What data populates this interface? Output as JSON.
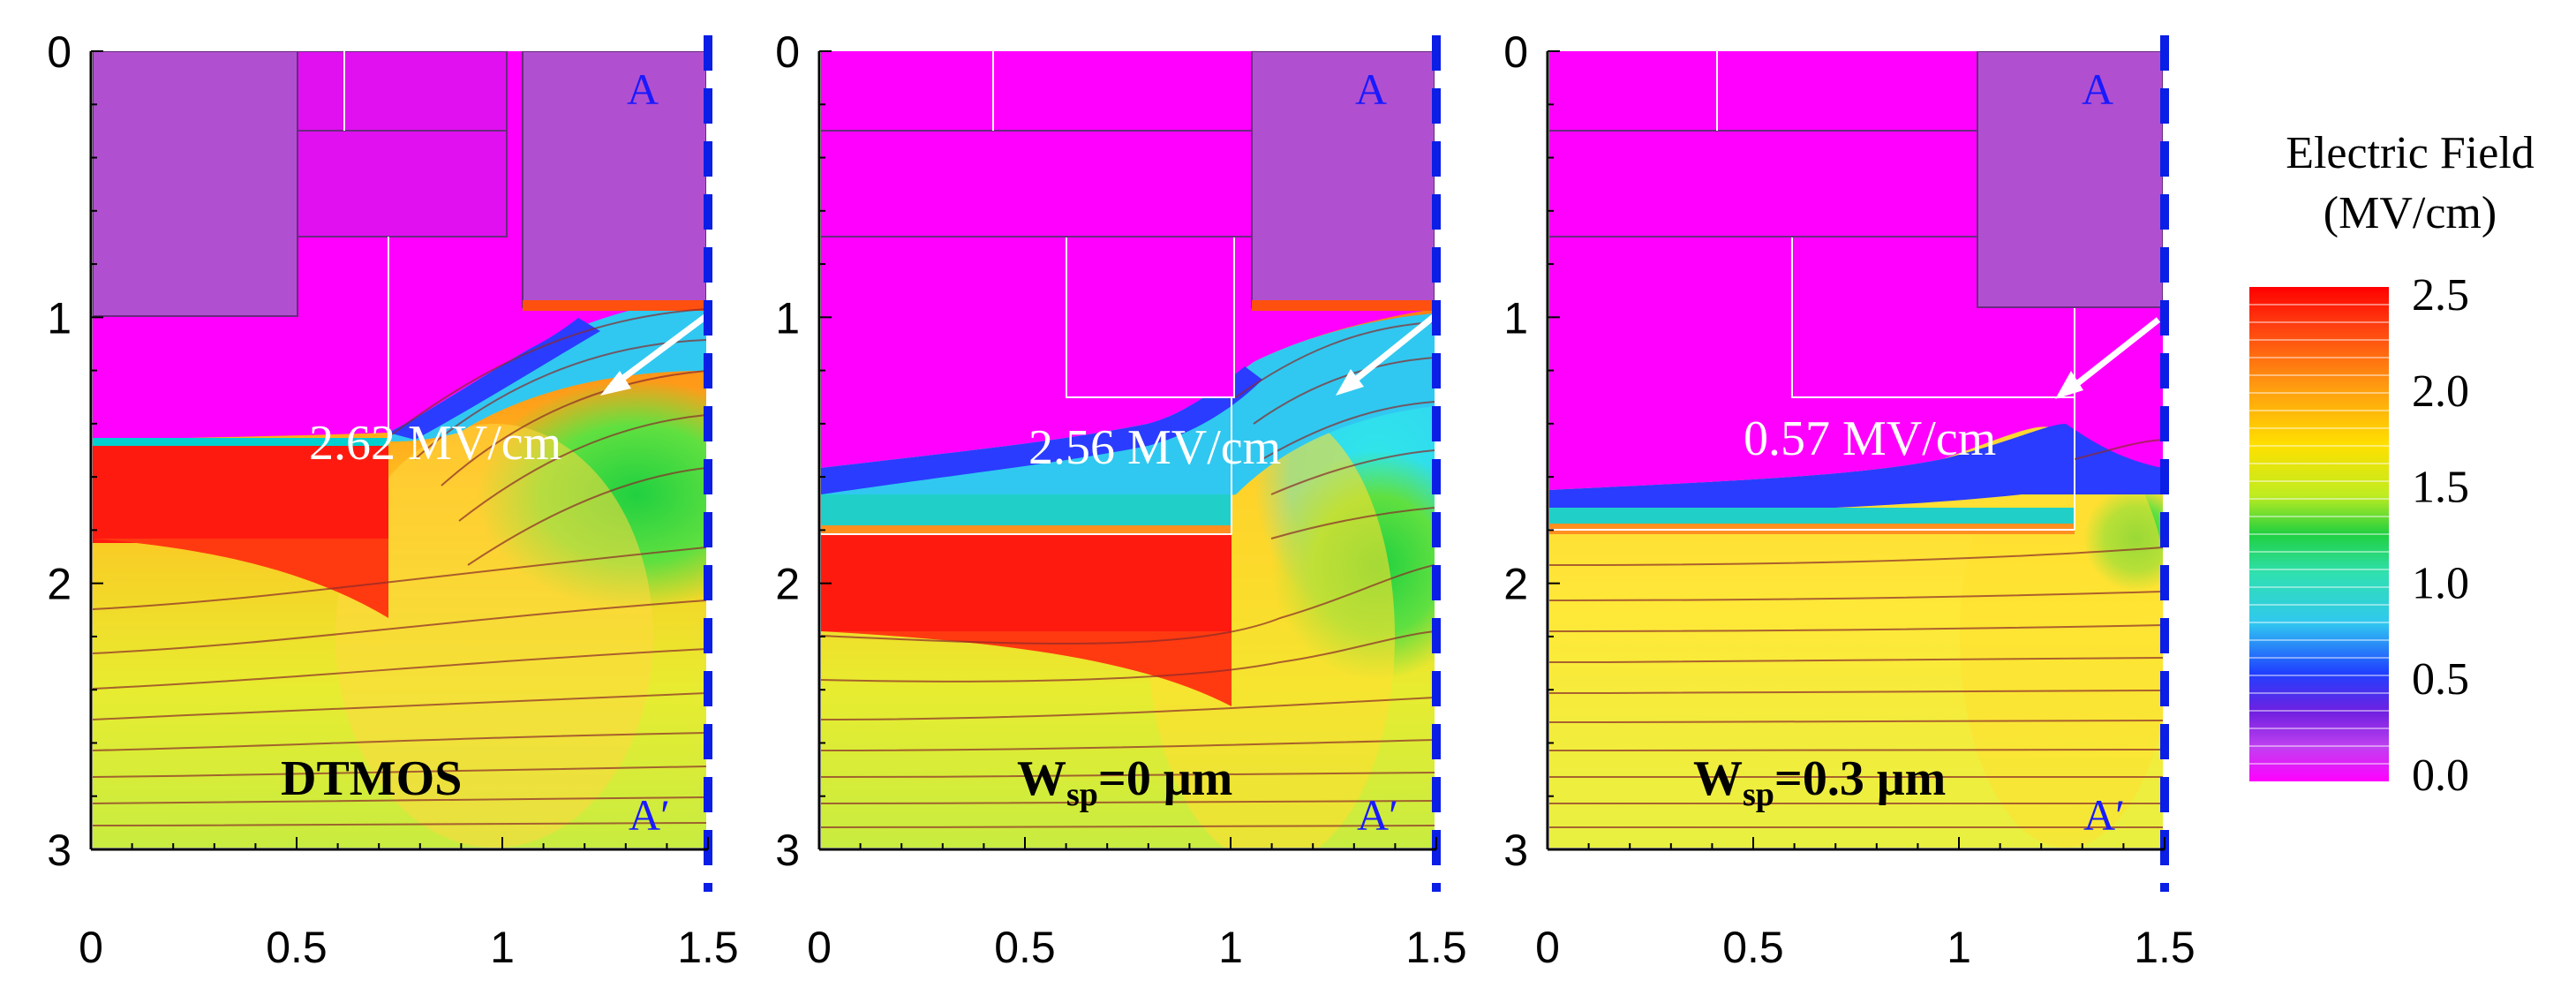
{
  "figure": {
    "x_ticks": [
      "0",
      "0.5",
      "1",
      "1.5"
    ],
    "y_ticks": [
      "0",
      "1",
      "2",
      "3"
    ]
  },
  "panels": [
    {
      "structure": "DTMOS",
      "annotation": "2.62 MV/cm",
      "point_a": "A",
      "point_a_prime": "A′"
    },
    {
      "structure": "Wsp=0 μm",
      "structure_main": "W",
      "structure_sub": "sp",
      "structure_rest": "=0 μm",
      "annotation": "2.56 MV/cm",
      "point_a": "A",
      "point_a_prime": "A′"
    },
    {
      "structure": "Wsp=0.3 μm",
      "structure_main": "W",
      "structure_sub": "sp",
      "structure_rest": "=0.3 μm",
      "annotation": "0.57 MV/cm",
      "point_a": "A",
      "point_a_prime": "A′"
    }
  ],
  "legend": {
    "title_line1": "Electric Field",
    "title_line2": "(MV/cm)",
    "ticks": [
      "2.5",
      "2.0",
      "1.5",
      "1.0",
      "0.5",
      "0.0"
    ],
    "max": 2.5,
    "min": 0.0
  },
  "colors": {
    "dashed_line": "#0a1ee6",
    "pink_region": "#ff00ff",
    "oxide": "#b050d0",
    "annotation_arrow": "#ffffff"
  }
}
